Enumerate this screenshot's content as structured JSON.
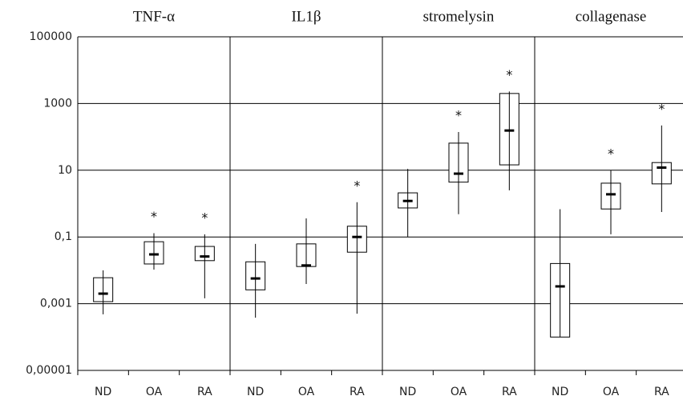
{
  "chart_data": {
    "type": "box",
    "log_scale": true,
    "grid": true,
    "ylim": [
      1e-05,
      100000
    ],
    "yticks": [
      100000,
      1000,
      10,
      {
        "value": 0.1,
        "label": "0,1"
      },
      {
        "value": 0.001,
        "label": "0,001"
      },
      {
        "value": 1e-05,
        "label": "0,00001"
      }
    ],
    "color": "#000000",
    "panels": [
      {
        "title": "TNF-α",
        "categories": [
          "ND",
          "OA",
          "RA"
        ],
        "boxes": [
          {
            "min": 0.00048,
            "q1": 0.00115,
            "median": 0.002,
            "q3": 0.006,
            "max": 0.01
          },
          {
            "min": 0.0105,
            "q1": 0.0155,
            "median": 0.03,
            "q3": 0.072,
            "max": 0.13
          },
          {
            "min": 0.00145,
            "q1": 0.0195,
            "median": 0.026,
            "q3": 0.052,
            "max": 0.12
          }
        ],
        "annotations": [
          null,
          "*",
          "*"
        ]
      },
      {
        "title": "IL1β",
        "categories": [
          "ND",
          "OA",
          "RA"
        ],
        "boxes": [
          {
            "min": 0.00038,
            "q1": 0.0026,
            "median": 0.0057,
            "q3": 0.018,
            "max": 0.062
          },
          {
            "min": 0.0039,
            "q1": 0.013,
            "median": 0.014,
            "q3": 0.062,
            "max": 0.36
          },
          {
            "min": 0.0005,
            "q1": 0.035,
            "median": 0.1,
            "q3": 0.21,
            "max": 1.1
          }
        ],
        "annotations": [
          null,
          null,
          "*"
        ]
      },
      {
        "title": "stromelysin",
        "categories": [
          "ND",
          "OA",
          "RA"
        ],
        "boxes": [
          {
            "min": 0.1,
            "q1": 0.74,
            "median": 1.2,
            "q3": 2.1,
            "max": 11
          },
          {
            "min": 0.48,
            "q1": 4.4,
            "median": 7.9,
            "q3": 65,
            "max": 140
          },
          {
            "min": 2.5,
            "q1": 14.5,
            "median": 155,
            "q3": 2000,
            "max": 2300
          }
        ],
        "annotations": [
          null,
          "*",
          "*"
        ]
      },
      {
        "title": "collagenase",
        "categories": [
          "ND",
          "OA",
          "RA"
        ],
        "boxes": [
          {
            "min": 0.0001,
            "q1": 0.0001,
            "median": 0.0033,
            "q3": 0.016,
            "max": 0.68
          },
          {
            "min": 0.12,
            "q1": 0.69,
            "median": 1.9,
            "q3": 4.1,
            "max": 10
          },
          {
            "min": 0.56,
            "q1": 3.9,
            "median": 12,
            "q3": 17,
            "max": 220
          }
        ],
        "annotations": [
          null,
          "*",
          "*"
        ]
      }
    ]
  }
}
